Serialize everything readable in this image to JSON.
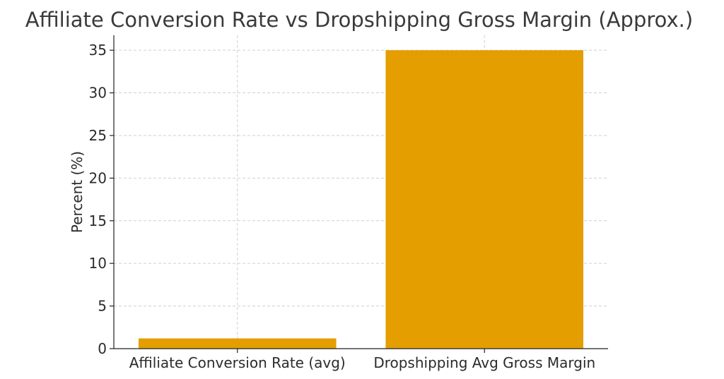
{
  "chart_data": {
    "type": "bar",
    "title": "Affiliate Conversion Rate vs Dropshipping Gross Margin (Approx.)",
    "xlabel": "",
    "ylabel": "Percent (%)",
    "categories": [
      "Affiliate Conversion Rate (avg)",
      "Dropshipping Avg Gross Margin"
    ],
    "values": [
      1.2,
      35
    ],
    "ylim": [
      0,
      36.75
    ],
    "yticks": [
      "0",
      "5",
      "10",
      "15",
      "20",
      "25",
      "30",
      "35"
    ],
    "grid": true,
    "colors": {
      "bar": "#E49E00"
    }
  }
}
